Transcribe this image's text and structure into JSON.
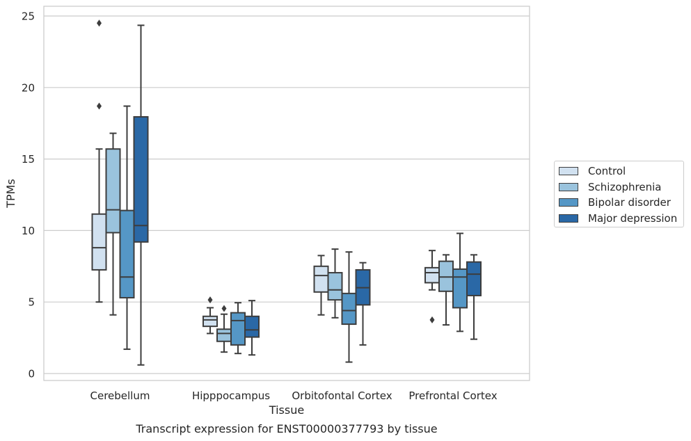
{
  "chart_data": {
    "type": "box",
    "title": "Transcript expression for ENST00000377793 by tissue",
    "xlabel": "Tissue",
    "ylabel": "TPMs",
    "ylim": [
      -0.5,
      25.7
    ],
    "yticks": [
      0,
      5,
      10,
      15,
      20,
      25
    ],
    "grid": "horizontal",
    "legend_position": "right",
    "categories": [
      "Cerebellum",
      "Hipppocampus",
      "Orbitofontal Cortex",
      "Prefrontal Cortex"
    ],
    "series": [
      {
        "name": "Control",
        "color": "#d1e1f0",
        "boxes": [
          {
            "whislo": 5.0,
            "q1": 7.25,
            "med": 8.8,
            "q3": 11.15,
            "whishi": 15.7,
            "fliers": [
              18.7,
              24.5
            ]
          },
          {
            "whislo": 2.8,
            "q1": 3.3,
            "med": 3.75,
            "q3": 4.0,
            "whishi": 4.6,
            "fliers": [
              5.15
            ]
          },
          {
            "whislo": 4.1,
            "q1": 5.7,
            "med": 6.85,
            "q3": 7.5,
            "whishi": 8.25,
            "fliers": []
          },
          {
            "whislo": 5.85,
            "q1": 6.35,
            "med": 7.05,
            "q3": 7.4,
            "whishi": 8.6,
            "fliers": [
              3.75
            ]
          }
        ]
      },
      {
        "name": "Schizophrenia",
        "color": "#9ac3dd",
        "boxes": [
          {
            "whislo": 4.1,
            "q1": 9.85,
            "med": 11.45,
            "q3": 15.7,
            "whishi": 16.8,
            "fliers": []
          },
          {
            "whislo": 1.5,
            "q1": 2.25,
            "med": 2.8,
            "q3": 3.1,
            "whishi": 4.15,
            "fliers": [
              4.55
            ]
          },
          {
            "whislo": 3.9,
            "q1": 5.15,
            "med": 5.85,
            "q3": 7.05,
            "whishi": 8.7,
            "fliers": []
          },
          {
            "whislo": 3.4,
            "q1": 5.75,
            "med": 6.75,
            "q3": 7.85,
            "whishi": 8.3,
            "fliers": []
          }
        ]
      },
      {
        "name": "Bipolar disorder",
        "color": "#5597c6",
        "boxes": [
          {
            "whislo": 1.7,
            "q1": 5.3,
            "med": 6.75,
            "q3": 11.4,
            "whishi": 18.7,
            "fliers": []
          },
          {
            "whislo": 1.4,
            "q1": 2.0,
            "med": 3.7,
            "q3": 4.25,
            "whishi": 4.95,
            "fliers": []
          },
          {
            "whislo": 0.8,
            "q1": 3.45,
            "med": 4.4,
            "q3": 5.6,
            "whishi": 8.5,
            "fliers": []
          },
          {
            "whislo": 2.95,
            "q1": 4.6,
            "med": 6.75,
            "q3": 7.3,
            "whishi": 9.8,
            "fliers": []
          }
        ]
      },
      {
        "name": "Major depression",
        "color": "#2a68a6",
        "boxes": [
          {
            "whislo": 0.6,
            "q1": 9.2,
            "med": 10.35,
            "q3": 17.95,
            "whishi": 24.35,
            "fliers": []
          },
          {
            "whislo": 1.3,
            "q1": 2.55,
            "med": 3.05,
            "q3": 4.0,
            "whishi": 5.1,
            "fliers": []
          },
          {
            "whislo": 2.0,
            "q1": 4.8,
            "med": 6.0,
            "q3": 7.25,
            "whishi": 7.75,
            "fliers": []
          },
          {
            "whislo": 2.4,
            "q1": 5.45,
            "med": 6.95,
            "q3": 7.8,
            "whishi": 8.3,
            "fliers": []
          }
        ]
      }
    ]
  }
}
